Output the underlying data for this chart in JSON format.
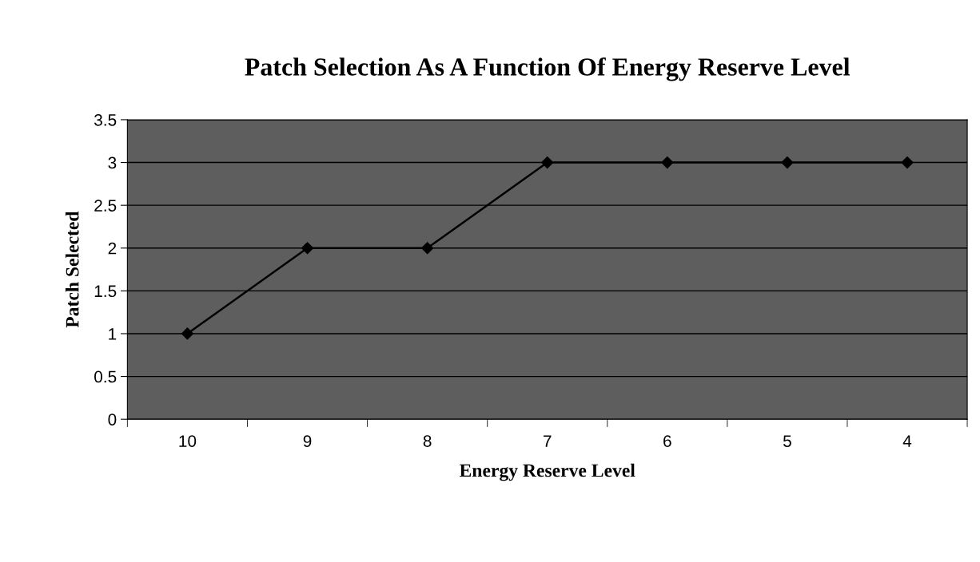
{
  "chart_data": {
    "type": "line",
    "title": "Patch Selection As A Function Of Energy Reserve Level",
    "xlabel": "Energy Reserve Level",
    "ylabel": "Patch Selected",
    "categories": [
      "10",
      "9",
      "8",
      "7",
      "6",
      "5",
      "4"
    ],
    "series": [
      {
        "color": "#000000",
        "values": [
          1,
          2,
          2,
          3,
          3,
          3,
          3
        ]
      }
    ],
    "ylim": [
      0,
      3.5
    ],
    "yticks": [
      0,
      0.5,
      1,
      1.5,
      2,
      2.5,
      3,
      3.5
    ],
    "grid": "y",
    "marker": "diamond",
    "line_style": "solid"
  }
}
